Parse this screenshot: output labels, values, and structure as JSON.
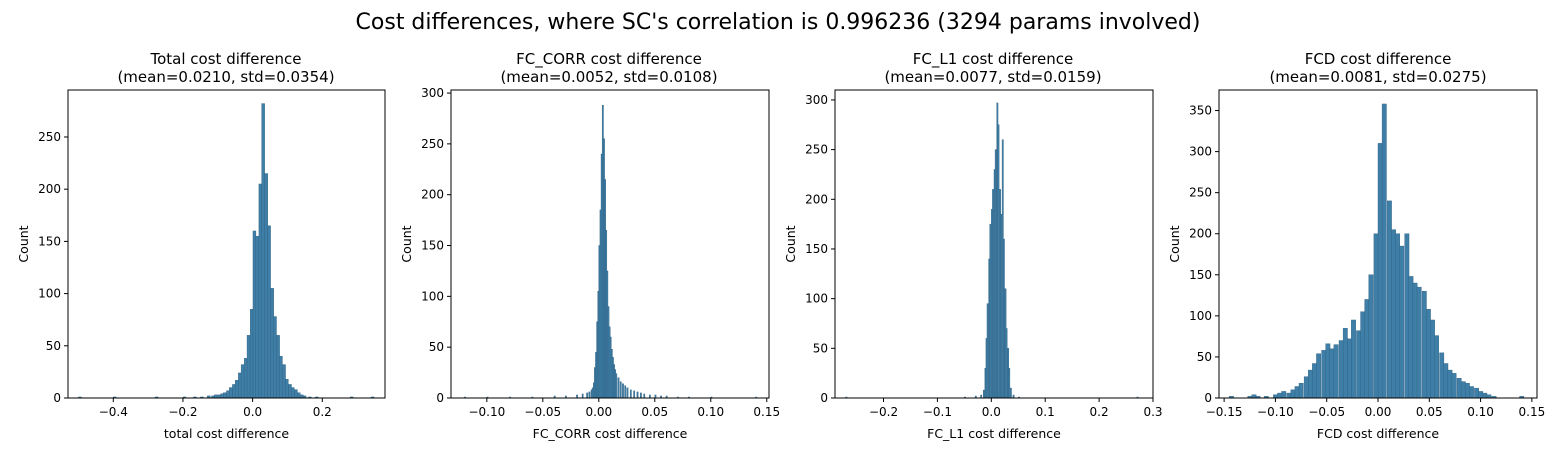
{
  "figure": {
    "suptitle": "Cost differences, where SC's correlation is 0.996236 (3294 params involved)"
  },
  "chart_data": [
    {
      "type": "bar",
      "subtype": "histogram",
      "title_line1": "Total cost difference",
      "title_line2": "(mean=0.0210, std=0.0354)",
      "xlabel": "total cost difference",
      "ylabel": "Count",
      "xlim": [
        -0.53,
        0.38
      ],
      "ylim": [
        0,
        295
      ],
      "xticks": [
        -0.4,
        -0.2,
        0.0,
        0.2
      ],
      "xtick_labels": [
        "−0.4",
        "−0.2",
        "0.0",
        "0.2"
      ],
      "yticks": [
        0,
        50,
        100,
        150,
        200,
        250
      ],
      "bin_width": 0.0085,
      "bins": [
        [
          -0.5,
          1
        ],
        [
          -0.4,
          1
        ],
        [
          -0.28,
          1
        ],
        [
          -0.2,
          1
        ],
        [
          -0.17,
          1
        ],
        [
          -0.15,
          1
        ],
        [
          -0.13,
          2
        ],
        [
          -0.118,
          2
        ],
        [
          -0.11,
          3
        ],
        [
          -0.1,
          3
        ],
        [
          -0.092,
          4
        ],
        [
          -0.084,
          5
        ],
        [
          -0.075,
          7
        ],
        [
          -0.067,
          10
        ],
        [
          -0.058,
          13
        ],
        [
          -0.05,
          17
        ],
        [
          -0.041,
          24
        ],
        [
          -0.033,
          32
        ],
        [
          -0.024,
          38
        ],
        [
          -0.016,
          60
        ],
        [
          -0.007,
          85
        ],
        [
          0.001,
          160
        ],
        [
          0.009,
          155
        ],
        [
          0.018,
          205
        ],
        [
          0.026,
          282
        ],
        [
          0.035,
          215
        ],
        [
          0.043,
          165
        ],
        [
          0.052,
          105
        ],
        [
          0.06,
          78
        ],
        [
          0.069,
          60
        ],
        [
          0.077,
          40
        ],
        [
          0.086,
          32
        ],
        [
          0.094,
          18
        ],
        [
          0.103,
          13
        ],
        [
          0.111,
          10
        ],
        [
          0.12,
          8
        ],
        [
          0.128,
          5
        ],
        [
          0.137,
          3
        ],
        [
          0.145,
          2
        ],
        [
          0.16,
          1
        ],
        [
          0.18,
          1
        ],
        [
          0.28,
          1
        ],
        [
          0.34,
          1
        ]
      ]
    },
    {
      "type": "bar",
      "subtype": "histogram",
      "title_line1": "FC_CORR cost difference",
      "title_line2": "(mean=0.0052, std=0.0108)",
      "xlabel": "FC_CORR cost difference",
      "ylabel": "Count",
      "xlim": [
        -0.132,
        0.152
      ],
      "ylim": [
        0,
        303
      ],
      "xticks": [
        -0.1,
        -0.05,
        0.0,
        0.05,
        0.1,
        0.15
      ],
      "xtick_labels": [
        "−0.10",
        "−0.05",
        "0.00",
        "0.05",
        "0.10",
        "0.15"
      ],
      "yticks": [
        0,
        50,
        100,
        150,
        200,
        250,
        300
      ],
      "bin_width": 0.00118,
      "bins": [
        [
          -0.12,
          1
        ],
        [
          -0.1,
          1
        ],
        [
          -0.08,
          1
        ],
        [
          -0.06,
          1
        ],
        [
          -0.04,
          2
        ],
        [
          -0.03,
          2
        ],
        [
          -0.02,
          3
        ],
        [
          -0.015,
          4
        ],
        [
          -0.011,
          5
        ],
        [
          -0.009,
          6
        ],
        [
          -0.007,
          8
        ],
        [
          -0.006,
          10
        ],
        [
          -0.005,
          15
        ],
        [
          -0.004,
          30
        ],
        [
          -0.003,
          45
        ],
        [
          -0.002,
          75
        ],
        [
          -0.001,
          105
        ],
        [
          0.0,
          150
        ],
        [
          0.001,
          185
        ],
        [
          0.002,
          240
        ],
        [
          0.003,
          288
        ],
        [
          0.004,
          255
        ],
        [
          0.005,
          215
        ],
        [
          0.006,
          165
        ],
        [
          0.007,
          125
        ],
        [
          0.008,
          90
        ],
        [
          0.009,
          70
        ],
        [
          0.01,
          60
        ],
        [
          0.011,
          48
        ],
        [
          0.012,
          40
        ],
        [
          0.013,
          33
        ],
        [
          0.014,
          28
        ],
        [
          0.015,
          24
        ],
        [
          0.017,
          20
        ],
        [
          0.019,
          16
        ],
        [
          0.021,
          14
        ],
        [
          0.023,
          12
        ],
        [
          0.025,
          10
        ],
        [
          0.028,
          8
        ],
        [
          0.031,
          7
        ],
        [
          0.034,
          6
        ],
        [
          0.037,
          5
        ],
        [
          0.04,
          4
        ],
        [
          0.045,
          3
        ],
        [
          0.05,
          3
        ],
        [
          0.055,
          2
        ],
        [
          0.06,
          2
        ],
        [
          0.07,
          1
        ],
        [
          0.08,
          1
        ],
        [
          0.1,
          1
        ],
        [
          0.14,
          1
        ]
      ]
    },
    {
      "type": "bar",
      "subtype": "histogram",
      "title_line1": "FC_L1 cost difference",
      "title_line2": "(mean=0.0077, std=0.0159)",
      "xlabel": "FC_L1 cost difference",
      "ylabel": "Count",
      "xlim": [
        -0.29,
        0.3
      ],
      "ylim": [
        0,
        310
      ],
      "xticks": [
        -0.2,
        -0.1,
        0.0,
        0.1,
        0.2,
        0.3
      ],
      "xtick_labels": [
        "−0.2",
        "−0.1",
        "0.0",
        "0.1",
        "0.2",
        "0.3"
      ],
      "yticks": [
        0,
        50,
        100,
        150,
        200,
        250,
        300
      ],
      "bin_width": 0.0025,
      "bins": [
        [
          -0.27,
          1
        ],
        [
          -0.05,
          1
        ],
        [
          -0.03,
          2
        ],
        [
          -0.02,
          3
        ],
        [
          -0.015,
          8
        ],
        [
          -0.012,
          30
        ],
        [
          -0.01,
          60
        ],
        [
          -0.008,
          95
        ],
        [
          -0.005,
          140
        ],
        [
          -0.003,
          175
        ],
        [
          0.0,
          190
        ],
        [
          0.002,
          210
        ],
        [
          0.005,
          230
        ],
        [
          0.007,
          250
        ],
        [
          0.01,
          297
        ],
        [
          0.012,
          275
        ],
        [
          0.015,
          210
        ],
        [
          0.017,
          185
        ],
        [
          0.02,
          260
        ],
        [
          0.022,
          160
        ],
        [
          0.025,
          110
        ],
        [
          0.027,
          70
        ],
        [
          0.03,
          50
        ],
        [
          0.032,
          30
        ],
        [
          0.035,
          10
        ],
        [
          0.04,
          3
        ],
        [
          0.05,
          1
        ],
        [
          0.27,
          1
        ]
      ]
    },
    {
      "type": "bar",
      "subtype": "histogram",
      "title_line1": "FCD cost difference",
      "title_line2": "(mean=0.0081, std=0.0275)",
      "xlabel": "FCD cost difference",
      "ylabel": "Count",
      "xlim": [
        -0.155,
        0.155
      ],
      "ylim": [
        0,
        375
      ],
      "xticks": [
        -0.15,
        -0.1,
        -0.05,
        0.0,
        0.05,
        0.1,
        0.15
      ],
      "xtick_labels": [
        "−0.15",
        "−0.10",
        "−0.05",
        "0.00",
        "0.05",
        "0.10",
        "0.15"
      ],
      "yticks": [
        0,
        50,
        100,
        150,
        200,
        250,
        300,
        350
      ],
      "bin_width": 0.00425,
      "bins": [
        [
          -0.145,
          2
        ],
        [
          -0.127,
          2
        ],
        [
          -0.123,
          4
        ],
        [
          -0.119,
          2
        ],
        [
          -0.111,
          2
        ],
        [
          -0.102,
          4
        ],
        [
          -0.098,
          6
        ],
        [
          -0.094,
          8
        ],
        [
          -0.089,
          6
        ],
        [
          -0.085,
          10
        ],
        [
          -0.081,
          14
        ],
        [
          -0.077,
          18
        ],
        [
          -0.072,
          26
        ],
        [
          -0.068,
          34
        ],
        [
          -0.064,
          42
        ],
        [
          -0.06,
          54
        ],
        [
          -0.055,
          58
        ],
        [
          -0.051,
          66
        ],
        [
          -0.047,
          60
        ],
        [
          -0.043,
          65
        ],
        [
          -0.038,
          70
        ],
        [
          -0.034,
          85
        ],
        [
          -0.03,
          72
        ],
        [
          -0.026,
          95
        ],
        [
          -0.021,
          82
        ],
        [
          -0.017,
          105
        ],
        [
          -0.013,
          120
        ],
        [
          -0.009,
          150
        ],
        [
          -0.004,
          200
        ],
        [
          0.0,
          310
        ],
        [
          0.004,
          358
        ],
        [
          0.009,
          240
        ],
        [
          0.013,
          205
        ],
        [
          0.017,
          200
        ],
        [
          0.021,
          185
        ],
        [
          0.026,
          200
        ],
        [
          0.03,
          148
        ],
        [
          0.034,
          140
        ],
        [
          0.038,
          135
        ],
        [
          0.043,
          130
        ],
        [
          0.047,
          108
        ],
        [
          0.051,
          95
        ],
        [
          0.055,
          76
        ],
        [
          0.06,
          55
        ],
        [
          0.064,
          42
        ],
        [
          0.068,
          34
        ],
        [
          0.072,
          30
        ],
        [
          0.077,
          24
        ],
        [
          0.081,
          20
        ],
        [
          0.085,
          18
        ],
        [
          0.089,
          14
        ],
        [
          0.094,
          12
        ],
        [
          0.098,
          8
        ],
        [
          0.102,
          6
        ],
        [
          0.106,
          4
        ],
        [
          0.111,
          2
        ],
        [
          0.138,
          2
        ]
      ]
    }
  ]
}
